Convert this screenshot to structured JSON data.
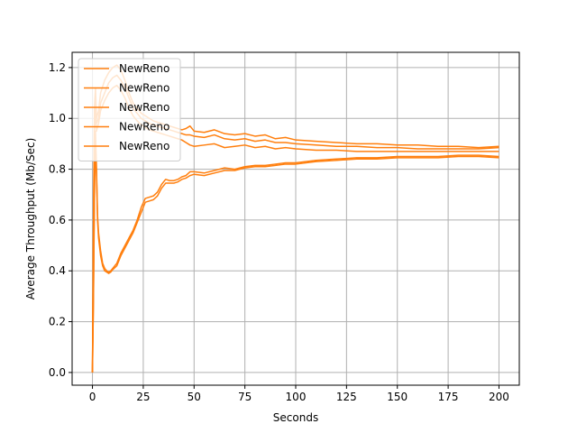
{
  "chart_data": {
    "type": "line",
    "title": "",
    "xlabel": "Seconds",
    "ylabel": "Average Throughput (Mb/Sec)",
    "xlim": [
      -10,
      210
    ],
    "ylim": [
      -0.05,
      1.26
    ],
    "xticks": [
      0,
      25,
      50,
      75,
      100,
      125,
      150,
      175,
      200
    ],
    "yticks": [
      0.0,
      0.2,
      0.4,
      0.6,
      0.8,
      1.0,
      1.2
    ],
    "grid": true,
    "legend_position": "top-left",
    "line_color": "#ff7f0e",
    "series": [
      {
        "name": "NewReno",
        "x": [
          0,
          0.5,
          1,
          1.5,
          2,
          3,
          4,
          6,
          8,
          10,
          12,
          14,
          16,
          18,
          20,
          22,
          24,
          26,
          28,
          30,
          32,
          34,
          36,
          38,
          40,
          42,
          44,
          46,
          48,
          50,
          55,
          60,
          65,
          70,
          75,
          80,
          85,
          90,
          95,
          100,
          110,
          120,
          130,
          140,
          150,
          160,
          170,
          180,
          190,
          200
        ],
        "values": [
          0.0,
          0.6,
          1.05,
          1.12,
          1.0,
          1.03,
          1.1,
          1.15,
          1.18,
          1.2,
          1.21,
          1.19,
          1.15,
          1.1,
          1.06,
          1.04,
          1.02,
          1.01,
          1.0,
          0.99,
          0.985,
          0.98,
          0.975,
          0.97,
          0.965,
          0.96,
          0.955,
          0.96,
          0.97,
          0.95,
          0.945,
          0.955,
          0.94,
          0.935,
          0.94,
          0.93,
          0.935,
          0.92,
          0.925,
          0.915,
          0.91,
          0.905,
          0.9,
          0.9,
          0.895,
          0.895,
          0.89,
          0.89,
          0.885,
          0.89
        ]
      },
      {
        "name": "NewReno",
        "x": [
          0,
          0.5,
          1,
          1.5,
          2,
          3,
          4,
          6,
          8,
          10,
          12,
          14,
          16,
          18,
          20,
          22,
          24,
          26,
          28,
          30,
          32,
          34,
          36,
          38,
          40,
          42,
          44,
          46,
          48,
          50,
          55,
          60,
          65,
          70,
          75,
          80,
          85,
          90,
          95,
          100,
          110,
          120,
          130,
          140,
          150,
          160,
          170,
          180,
          190,
          200
        ],
        "values": [
          0.0,
          0.55,
          1.0,
          1.08,
          0.98,
          1.0,
          1.06,
          1.1,
          1.14,
          1.16,
          1.17,
          1.15,
          1.12,
          1.08,
          1.04,
          1.02,
          1.0,
          0.99,
          0.98,
          0.975,
          0.97,
          0.965,
          0.96,
          0.955,
          0.95,
          0.945,
          0.94,
          0.935,
          0.935,
          0.93,
          0.925,
          0.935,
          0.92,
          0.915,
          0.92,
          0.91,
          0.915,
          0.905,
          0.905,
          0.9,
          0.895,
          0.89,
          0.89,
          0.885,
          0.885,
          0.88,
          0.88,
          0.88,
          0.88,
          0.885
        ]
      },
      {
        "name": "NewReno",
        "x": [
          0,
          0.5,
          1,
          1.5,
          2,
          3,
          4,
          6,
          8,
          10,
          12,
          14,
          16,
          18,
          20,
          22,
          24,
          26,
          28,
          30,
          32,
          34,
          36,
          38,
          40,
          42,
          44,
          46,
          48,
          50,
          55,
          60,
          65,
          70,
          75,
          80,
          85,
          90,
          95,
          100,
          110,
          120,
          130,
          140,
          150,
          160,
          170,
          180,
          190,
          200
        ],
        "values": [
          0.0,
          0.5,
          0.95,
          1.04,
          0.95,
          0.98,
          1.03,
          1.07,
          1.1,
          1.12,
          1.13,
          1.11,
          1.08,
          1.04,
          1.01,
          0.99,
          0.975,
          0.965,
          0.955,
          0.95,
          0.945,
          0.94,
          0.935,
          0.93,
          0.925,
          0.92,
          0.915,
          0.905,
          0.895,
          0.89,
          0.895,
          0.9,
          0.885,
          0.89,
          0.895,
          0.885,
          0.89,
          0.88,
          0.885,
          0.88,
          0.875,
          0.875,
          0.87,
          0.87,
          0.87,
          0.87,
          0.87,
          0.87,
          0.87,
          0.87
        ]
      },
      {
        "name": "NewReno",
        "x": [
          0,
          0.5,
          1,
          1.5,
          2,
          2.5,
          3,
          4,
          5,
          6,
          7,
          8,
          9,
          10,
          12,
          14,
          16,
          18,
          20,
          22,
          24,
          26,
          28,
          30,
          32,
          34,
          36,
          38,
          40,
          42,
          44,
          46,
          48,
          50,
          55,
          60,
          65,
          70,
          75,
          80,
          85,
          90,
          95,
          100,
          110,
          120,
          130,
          140,
          150,
          160,
          170,
          180,
          190,
          200
        ],
        "values": [
          0.0,
          0.3,
          0.75,
          0.95,
          0.8,
          0.62,
          0.55,
          0.48,
          0.43,
          0.41,
          0.4,
          0.395,
          0.4,
          0.41,
          0.43,
          0.47,
          0.5,
          0.53,
          0.56,
          0.6,
          0.65,
          0.685,
          0.69,
          0.695,
          0.71,
          0.74,
          0.76,
          0.755,
          0.755,
          0.76,
          0.77,
          0.775,
          0.79,
          0.79,
          0.785,
          0.795,
          0.805,
          0.8,
          0.81,
          0.815,
          0.815,
          0.82,
          0.825,
          0.825,
          0.835,
          0.84,
          0.845,
          0.845,
          0.85,
          0.85,
          0.85,
          0.855,
          0.855,
          0.85
        ]
      },
      {
        "name": "NewReno",
        "x": [
          0,
          0.5,
          1,
          1.5,
          2,
          2.5,
          3,
          4,
          5,
          6,
          7,
          8,
          9,
          10,
          12,
          14,
          16,
          18,
          20,
          22,
          24,
          26,
          28,
          30,
          32,
          34,
          36,
          38,
          40,
          42,
          44,
          46,
          48,
          50,
          55,
          60,
          65,
          70,
          75,
          80,
          85,
          90,
          95,
          100,
          110,
          120,
          130,
          140,
          150,
          160,
          170,
          180,
          190,
          200
        ],
        "values": [
          0.0,
          0.28,
          0.7,
          0.9,
          0.78,
          0.6,
          0.53,
          0.46,
          0.42,
          0.4,
          0.395,
          0.39,
          0.395,
          0.405,
          0.42,
          0.46,
          0.49,
          0.52,
          0.55,
          0.59,
          0.63,
          0.67,
          0.675,
          0.68,
          0.695,
          0.725,
          0.745,
          0.745,
          0.745,
          0.75,
          0.76,
          0.765,
          0.775,
          0.78,
          0.775,
          0.785,
          0.795,
          0.795,
          0.805,
          0.81,
          0.81,
          0.815,
          0.82,
          0.82,
          0.83,
          0.835,
          0.84,
          0.84,
          0.845,
          0.845,
          0.845,
          0.85,
          0.85,
          0.845
        ]
      }
    ]
  }
}
